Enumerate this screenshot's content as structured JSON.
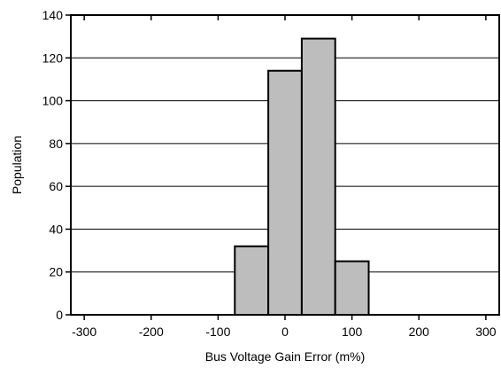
{
  "chart_data": {
    "type": "bar",
    "subtype": "histogram",
    "title": "",
    "xlabel": "Bus Voltage Gain Error (m%)",
    "ylabel": "Population",
    "xlim": [
      -320,
      320
    ],
    "ylim": [
      0,
      140
    ],
    "xticks": [
      -300,
      -200,
      -100,
      0,
      100,
      200,
      300
    ],
    "yticks": [
      0,
      20,
      40,
      60,
      80,
      100,
      120,
      140
    ],
    "bin_edges": [
      -75,
      -25,
      25,
      75,
      125
    ],
    "values": [
      32,
      114,
      129,
      25
    ],
    "grid": "horizontal",
    "legend": "none",
    "colors": {
      "bar_fill": "#bdbdbd",
      "bar_stroke": "#000000",
      "grid": "#000000"
    }
  }
}
